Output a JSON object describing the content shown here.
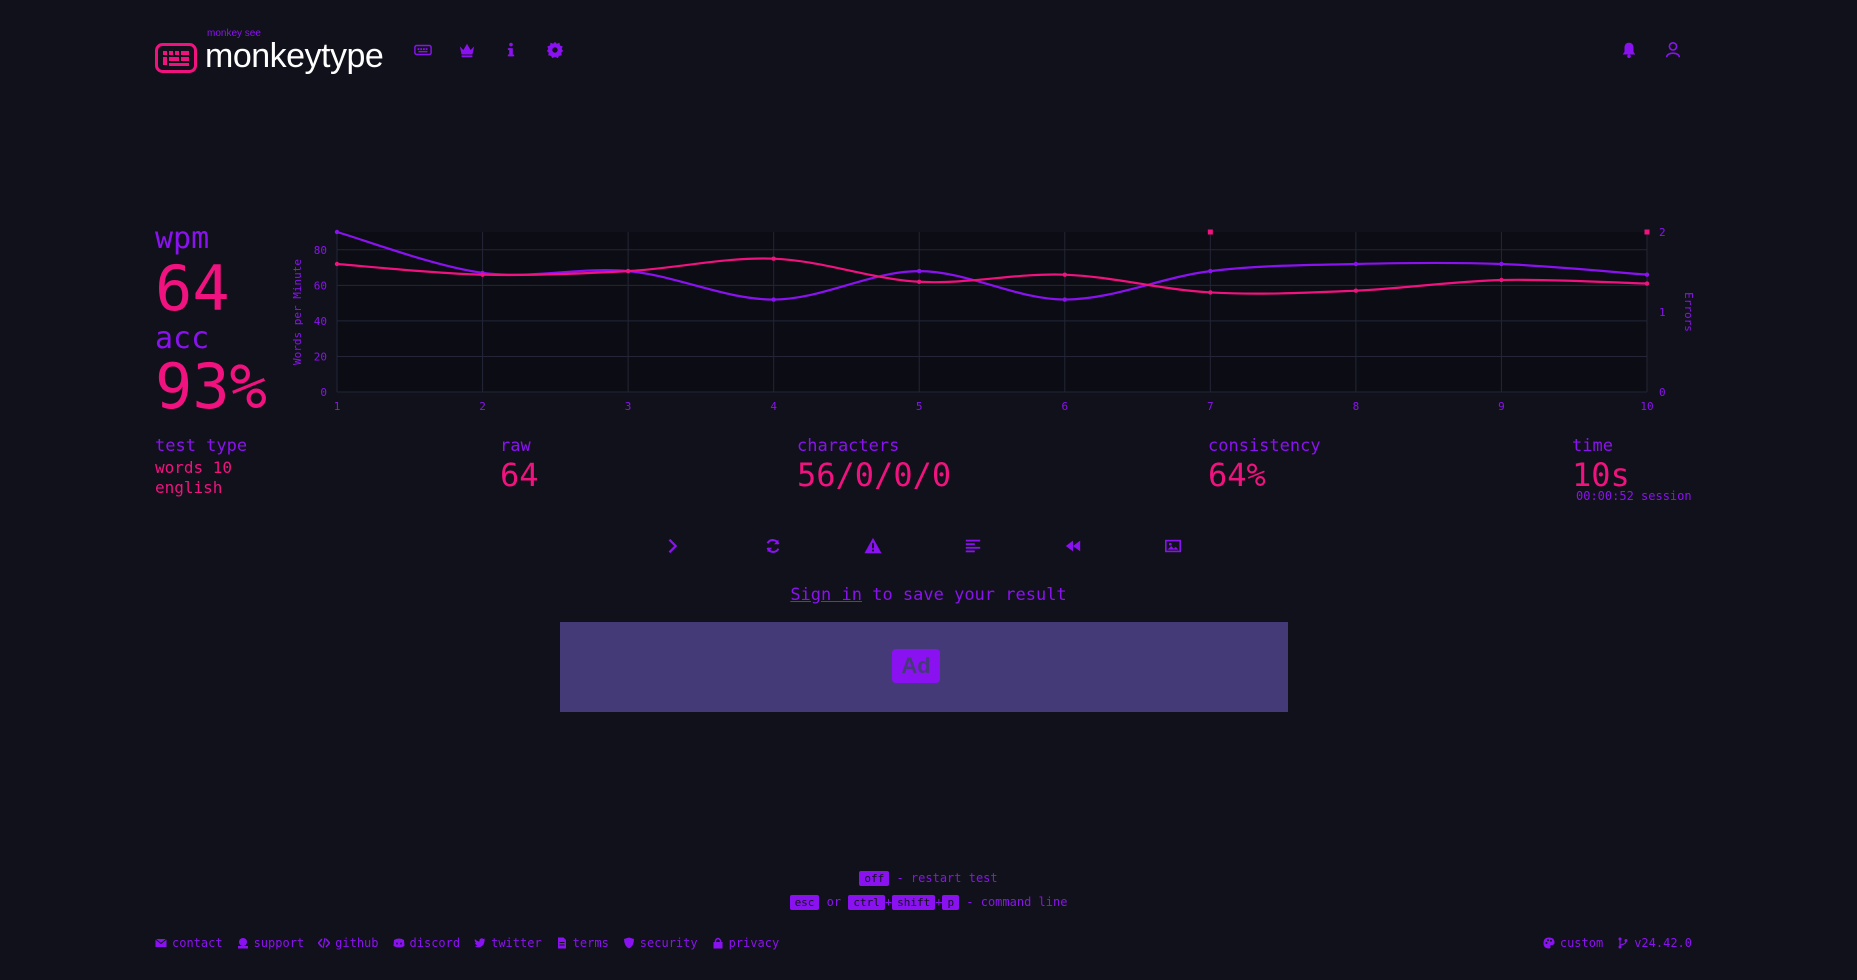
{
  "header": {
    "logo_sub": "monkey see",
    "logo_text": "monkeytype",
    "nav_icons": [
      "keyboard-icon",
      "crown-icon",
      "info-icon",
      "gear-icon"
    ],
    "right_icons": [
      "bell-icon",
      "user-icon"
    ]
  },
  "results": {
    "wpm_label": "wpm",
    "wpm_value": "64",
    "acc_label": "acc",
    "acc_value": "93%",
    "test_type_label": "test type",
    "test_type_line1": "words 10",
    "test_type_line2": "english",
    "raw_label": "raw",
    "raw_value": "64",
    "characters_label": "characters",
    "characters_value": "56/0/0/0",
    "consistency_label": "consistency",
    "consistency_value": "64%",
    "time_label": "time",
    "time_value": "10s",
    "session_text": "00:00:52 session"
  },
  "chart_data": {
    "type": "line",
    "x": [
      1,
      2,
      3,
      4,
      5,
      6,
      7,
      8,
      9,
      10
    ],
    "ylabel": "Words per Minute",
    "y2label": "Errors",
    "ylim": [
      0,
      90
    ],
    "y_ticks": [
      0,
      20,
      40,
      60,
      80
    ],
    "y2lim": [
      0,
      2
    ],
    "y2_ticks": [
      0,
      1,
      2
    ],
    "series": [
      {
        "values": [
          90,
          67,
          68,
          52,
          68,
          52,
          68,
          72,
          72,
          66
        ],
        "color": "#8b12f0"
      },
      {
        "values": [
          72,
          66,
          68,
          75,
          62,
          66,
          56,
          57,
          63,
          61
        ],
        "color": "#f0127f"
      }
    ],
    "errors": [
      {
        "x": 7,
        "y": 2
      },
      {
        "x": 10,
        "y": 2
      }
    ],
    "grid": true
  },
  "actions": [
    "next-test",
    "restart-test",
    "report-warning",
    "words-history",
    "replay",
    "screenshot"
  ],
  "signin": {
    "link": "Sign in",
    "rest": " to save your result"
  },
  "ad": {
    "label": "Ad"
  },
  "hints": {
    "key_tab": "off",
    "restart_text": " - restart test",
    "key_esc": "esc",
    "or_text": " or ",
    "key_ctrl": "ctrl",
    "key_shift": "shift",
    "key_p": "p",
    "plus": "+",
    "command_text": " - command line"
  },
  "footer": {
    "left": [
      "contact",
      "support",
      "github",
      "discord",
      "twitter",
      "terms",
      "security",
      "privacy"
    ],
    "right": [
      "custom",
      "v24.42.0"
    ]
  },
  "colors": {
    "bg": "#10111a",
    "main": "#8b12f0",
    "accent": "#f0127f",
    "ad": "#443a78"
  }
}
